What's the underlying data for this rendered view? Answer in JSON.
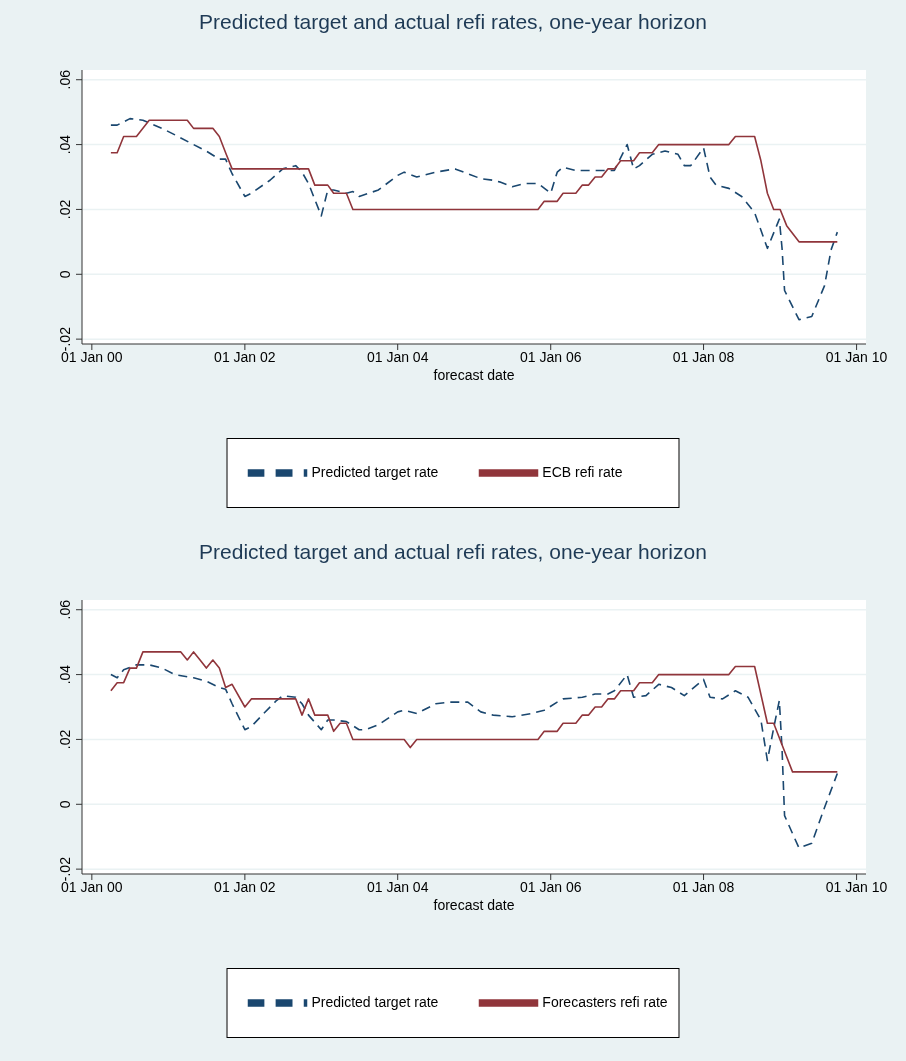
{
  "chart_data": [
    {
      "type": "line",
      "title": "Predicted target and actual refi rates, one-year horizon",
      "xlabel": "forecast date",
      "legend": "bottom",
      "grid": "y",
      "xlim": [
        "1999-11-15",
        "2010-02-15"
      ],
      "xticks": [
        {
          "value": "2000-01-01",
          "label": "01 Jan 00"
        },
        {
          "value": "2002-01-01",
          "label": "01 Jan 02"
        },
        {
          "value": "2004-01-01",
          "label": "01 Jan 04"
        },
        {
          "value": "2006-01-01",
          "label": "01 Jan 06"
        },
        {
          "value": "2008-01-01",
          "label": "01 Jan 08"
        },
        {
          "value": "2010-01-01",
          "label": "01 Jan 10"
        }
      ],
      "ylim": [
        -0.0215,
        0.063
      ],
      "yticks": [
        {
          "value": -0.02,
          "label": "-.02"
        },
        0,
        {
          "value": 0.02,
          "label": ".02"
        },
        {
          "value": 0.04,
          "label": ".04"
        },
        {
          "value": 0.06,
          "label": ".06"
        }
      ],
      "series": [
        {
          "name": "Predicted target rate",
          "color": "#1a476f",
          "line_style": "dashed",
          "x": [
            "2000-04",
            "2000-05",
            "2000-07",
            "2000-09",
            "2000-12",
            "2001-02",
            "2001-05",
            "2001-07",
            "2001-09",
            "2001-10",
            "2001-11",
            "2002-01",
            "2002-02",
            "2002-05",
            "2002-07",
            "2002-09",
            "2002-10",
            "2002-11",
            "2003-01",
            "2003-02",
            "2003-03",
            "2003-05",
            "2003-06",
            "2003-07",
            "2003-10",
            "2004-01",
            "2004-02",
            "2004-04",
            "2004-07",
            "2004-10",
            "2005-02",
            "2005-04",
            "2005-05",
            "2005-07",
            "2005-09",
            "2005-11",
            "2006-01",
            "2006-02",
            "2006-03",
            "2006-05",
            "2006-07",
            "2006-09",
            "2006-11",
            "2007-01",
            "2007-02",
            "2007-03",
            "2007-05",
            "2007-07",
            "2007-09",
            "2007-10",
            "2007-11",
            "2008-01",
            "2008-02",
            "2008-03",
            "2008-05",
            "2008-07",
            "2008-09",
            "2008-11",
            "2008-12-28",
            "2009-01-10",
            "2009-01-22",
            "2009-04",
            "2009-06",
            "2009-08",
            "2009-09",
            "2009-10"
          ],
          "values": [
            0.046,
            0.046,
            0.048,
            0.0475,
            0.045,
            0.043,
            0.04,
            0.038,
            0.0355,
            0.0355,
            0.031,
            0.024,
            0.025,
            0.029,
            0.0325,
            0.0335,
            0.0315,
            0.028,
            0.018,
            0.026,
            0.026,
            0.025,
            0.0255,
            0.024,
            0.026,
            0.0305,
            0.0315,
            0.03,
            0.0315,
            0.0325,
            0.0295,
            0.029,
            0.0285,
            0.027,
            0.028,
            0.028,
            0.025,
            0.0315,
            0.033,
            0.032,
            0.032,
            0.032,
            0.032,
            0.04,
            0.0325,
            0.0335,
            0.037,
            0.038,
            0.037,
            0.0335,
            0.0335,
            0.039,
            0.03,
            0.0275,
            0.0265,
            0.024,
            0.019,
            0.008,
            0.017,
            0.008,
            -0.005,
            -0.014,
            -0.013,
            -0.0035,
            0.0075,
            0.013
          ]
        },
        {
          "name": "ECB refi rate",
          "color": "#90353b",
          "line_style": "solid",
          "x": [
            "2000-04",
            "2000-05",
            "2000-06",
            "2000-08",
            "2000-10",
            "2001-04",
            "2001-05",
            "2001-08",
            "2001-09",
            "2001-10",
            "2001-11",
            "2002-11",
            "2002-12",
            "2003-02",
            "2003-03",
            "2003-05",
            "2003-06",
            "2005-11",
            "2005-12",
            "2006-02",
            "2006-03",
            "2006-05",
            "2006-06",
            "2006-07",
            "2006-08",
            "2006-09",
            "2006-10",
            "2006-11",
            "2006-12",
            "2007-02",
            "2007-03",
            "2007-05",
            "2007-06",
            "2008-05",
            "2008-06",
            "2008-09",
            "2008-10",
            "2008-11",
            "2008-12",
            "2009-01",
            "2009-02",
            "2009-04",
            "2009-10"
          ],
          "values": [
            0.0375,
            0.0375,
            0.0425,
            0.0425,
            0.0475,
            0.0475,
            0.045,
            0.045,
            0.0425,
            0.0375,
            0.0325,
            0.0325,
            0.0275,
            0.0275,
            0.025,
            0.025,
            0.02,
            0.02,
            0.0225,
            0.0225,
            0.025,
            0.025,
            0.0275,
            0.0275,
            0.03,
            0.03,
            0.0325,
            0.0325,
            0.035,
            0.035,
            0.0375,
            0.0375,
            0.04,
            0.04,
            0.0425,
            0.0425,
            0.035,
            0.025,
            0.02,
            0.02,
            0.015,
            0.01,
            0.01
          ]
        }
      ]
    },
    {
      "type": "line",
      "title": "Predicted target and actual refi rates, one-year horizon",
      "xlabel": "forecast date",
      "legend": "bottom",
      "grid": "y",
      "xlim": [
        "1999-11-15",
        "2010-02-15"
      ],
      "xticks": [
        {
          "value": "2000-01-01",
          "label": "01 Jan 00"
        },
        {
          "value": "2002-01-01",
          "label": "01 Jan 02"
        },
        {
          "value": "2004-01-01",
          "label": "01 Jan 04"
        },
        {
          "value": "2006-01-01",
          "label": "01 Jan 06"
        },
        {
          "value": "2008-01-01",
          "label": "01 Jan 08"
        },
        {
          "value": "2010-01-01",
          "label": "01 Jan 10"
        }
      ],
      "ylim": [
        -0.0215,
        0.063
      ],
      "yticks": [
        {
          "value": -0.02,
          "label": "-.02"
        },
        0,
        {
          "value": 0.02,
          "label": ".02"
        },
        {
          "value": 0.04,
          "label": ".04"
        },
        {
          "value": 0.06,
          "label": ".06"
        }
      ],
      "series": [
        {
          "name": "Predicted target rate",
          "color": "#1a476f",
          "line_style": "dashed",
          "x": [
            "2000-04",
            "2000-05",
            "2000-06",
            "2000-08",
            "2000-10",
            "2000-12",
            "2001-02",
            "2001-05",
            "2001-07",
            "2001-09",
            "2001-10",
            "2001-11",
            "2002-01",
            "2002-02",
            "2002-04",
            "2002-06",
            "2002-07",
            "2002-09",
            "2002-10",
            "2002-11",
            "2003-01",
            "2003-02",
            "2003-03",
            "2003-05",
            "2003-07",
            "2003-08",
            "2003-10",
            "2004-01",
            "2004-02",
            "2004-04",
            "2004-07",
            "2004-09",
            "2004-12",
            "2005-02",
            "2005-04",
            "2005-07",
            "2005-10",
            "2005-12",
            "2006-02",
            "2006-03",
            "2006-06",
            "2006-08",
            "2006-10",
            "2006-11",
            "2007-01",
            "2007-02",
            "2007-04",
            "2007-06",
            "2007-08",
            "2007-10",
            "2008-01",
            "2008-02",
            "2008-04",
            "2008-06",
            "2008-08",
            "2008-10",
            "2008-11",
            "2008-12",
            "2008-12-28",
            "2009-01-10",
            "2009-01-22",
            "2009-04",
            "2009-06",
            "2009-08",
            "2009-10"
          ],
          "values": [
            0.04,
            0.039,
            0.0415,
            0.043,
            0.043,
            0.042,
            0.04,
            0.039,
            0.038,
            0.036,
            0.0355,
            0.031,
            0.023,
            0.024,
            0.028,
            0.032,
            0.0335,
            0.033,
            0.031,
            0.0275,
            0.023,
            0.026,
            0.026,
            0.0255,
            0.023,
            0.023,
            0.0245,
            0.0285,
            0.029,
            0.028,
            0.031,
            0.0315,
            0.0315,
            0.0285,
            0.0275,
            0.027,
            0.028,
            0.029,
            0.0315,
            0.0325,
            0.033,
            0.034,
            0.034,
            0.035,
            0.04,
            0.033,
            0.0335,
            0.037,
            0.036,
            0.0335,
            0.0385,
            0.033,
            0.0325,
            0.035,
            0.033,
            0.026,
            0.0135,
            0.0235,
            0.032,
            0.017,
            -0.0035,
            -0.0135,
            -0.012,
            -0.001,
            0.0095
          ]
        },
        {
          "name": "Forecasters refi rate",
          "color": "#90353b",
          "line_style": "solid",
          "x": [
            "2000-04",
            "2000-05",
            "2000-06",
            "2000-07",
            "2000-08",
            "2000-09",
            "2000-10",
            "2001-03",
            "2001-04",
            "2001-05",
            "2001-06",
            "2001-07",
            "2001-08",
            "2001-09",
            "2001-10",
            "2001-11",
            "2002-01",
            "2002-02",
            "2002-09",
            "2002-10",
            "2002-11",
            "2002-12",
            "2003-02",
            "2003-03",
            "2003-04",
            "2003-05",
            "2003-06",
            "2004-02",
            "2004-03",
            "2004-04",
            "2005-11",
            "2005-12",
            "2006-02",
            "2006-03",
            "2006-05",
            "2006-06",
            "2006-07",
            "2006-08",
            "2006-09",
            "2006-10",
            "2006-11",
            "2006-12",
            "2007-02",
            "2007-03",
            "2007-05",
            "2007-06",
            "2008-05",
            "2008-06",
            "2008-09",
            "2008-11",
            "2008-12",
            "2009-03",
            "2009-10"
          ],
          "values": [
            0.035,
            0.0375,
            0.0375,
            0.042,
            0.042,
            0.047,
            0.047,
            0.047,
            0.0445,
            0.047,
            0.0445,
            0.042,
            0.0445,
            0.042,
            0.036,
            0.037,
            0.03,
            0.0325,
            0.0325,
            0.0275,
            0.0325,
            0.0275,
            0.0275,
            0.0225,
            0.025,
            0.025,
            0.02,
            0.02,
            0.0175,
            0.02,
            0.02,
            0.0225,
            0.0225,
            0.025,
            0.025,
            0.0275,
            0.0275,
            0.03,
            0.03,
            0.0325,
            0.0325,
            0.035,
            0.035,
            0.0375,
            0.0375,
            0.04,
            0.04,
            0.0425,
            0.0425,
            0.025,
            0.025,
            0.01,
            0.01
          ]
        }
      ]
    }
  ]
}
